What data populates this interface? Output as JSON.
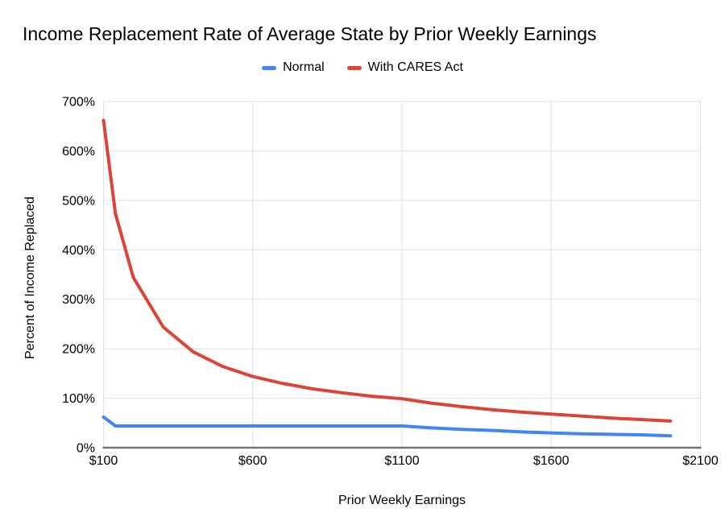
{
  "title": "Income Replacement Rate of Average State by Prior Weekly Earnings",
  "colors": {
    "background": "#ffffff",
    "gridline": "#e0e0e0",
    "axis_line": "#757575",
    "text": "#000000",
    "normal_series": "#4285F4",
    "cares_series": "#DB4437"
  },
  "chart_data": {
    "type": "line",
    "title": "Income Replacement Rate of Average State by Prior Weekly Earnings",
    "xlabel": "Prior Weekly Earnings",
    "ylabel": "Percent of Income Replaced",
    "xlim": [
      100,
      2100
    ],
    "ylim": [
      0,
      700
    ],
    "grid": true,
    "legend_position": "top",
    "x_ticks": {
      "values": [
        100,
        600,
        1100,
        1600,
        2100
      ],
      "labels": [
        "$100",
        "$600",
        "$1100",
        "$1600",
        "$2100"
      ]
    },
    "y_ticks": {
      "values": [
        0,
        100,
        200,
        300,
        400,
        500,
        600,
        700
      ],
      "labels": [
        "0%",
        "100%",
        "200%",
        "300%",
        "400%",
        "500%",
        "600%",
        "700%"
      ]
    },
    "x": [
      100,
      140,
      200,
      300,
      400,
      500,
      600,
      700,
      800,
      900,
      1000,
      1100,
      1200,
      1300,
      1400,
      1500,
      1600,
      1700,
      1800,
      1900,
      2000
    ],
    "series": [
      {
        "name": "Normal",
        "color": "#4285F4",
        "values": [
          62,
          44,
          44,
          44,
          44,
          44,
          44,
          44,
          44,
          44,
          44,
          44,
          40,
          37,
          35,
          32,
          30,
          28,
          27,
          26,
          24
        ]
      },
      {
        "name": "With CARES Act",
        "color": "#DB4437",
        "values": [
          662,
          473,
          344,
          244,
          194,
          164,
          144,
          130,
          119,
          111,
          104,
          99,
          90,
          83,
          77,
          72,
          68,
          64,
          60,
          57,
          54
        ]
      }
    ]
  }
}
